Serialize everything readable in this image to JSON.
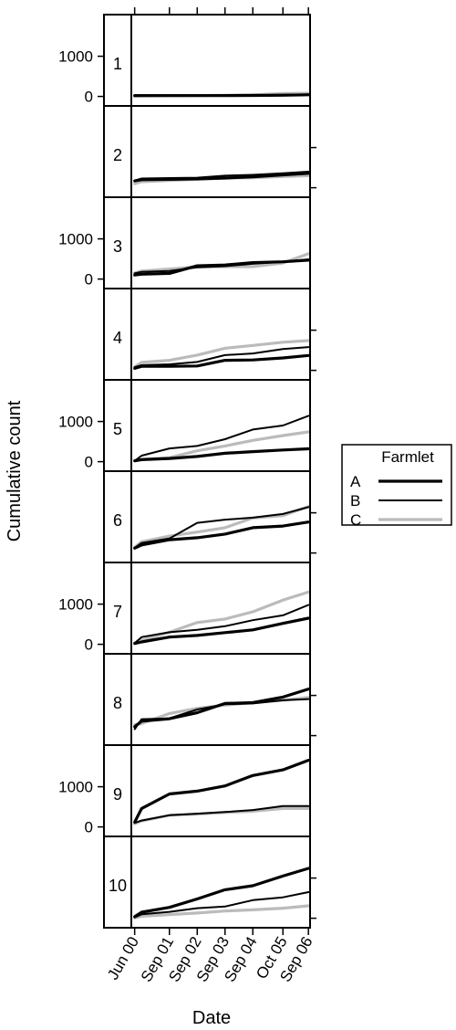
{
  "chart_data": {
    "type": "line",
    "ylabel": "Cumulative count",
    "xlabel": "Date",
    "x_tick_labels": [
      "Jun 00",
      "Sep 01",
      "Sep 02",
      "Sep 03",
      "Sep 04",
      "Oct 05",
      "Sep 06"
    ],
    "x_ticks": [
      "2000-06",
      "2001-09",
      "2002-09",
      "2003-09",
      "2004-09",
      "2005-10",
      "2006-09"
    ],
    "y_ticks": [
      0,
      1000
    ],
    "ylim": [
      -100,
      1900
    ],
    "legend": {
      "title": "Farmlet",
      "position": "right",
      "entries": [
        "A",
        "B",
        "C"
      ]
    },
    "series_styles": [
      {
        "key": "A",
        "color": "#000000",
        "width": 3.2
      },
      {
        "key": "B",
        "color": "#000000",
        "width": 2.0
      },
      {
        "key": "C",
        "color": "#bbbbbb",
        "width": 3.2
      }
    ],
    "x": [
      "2000-06",
      "2000-09",
      "2001-09",
      "2002-09",
      "2003-09",
      "2004-09",
      "2005-10",
      "2006-09"
    ],
    "panels": [
      {
        "label": "1",
        "series": [
          {
            "key": "A",
            "values": [
              20,
              20,
              20,
              20,
              20,
              25,
              30,
              40
            ]
          },
          {
            "key": "B",
            "values": [
              30,
              30,
              30,
              30,
              30,
              35,
              40,
              50
            ]
          },
          {
            "key": "C",
            "values": [
              5,
              10,
              15,
              20,
              30,
              40,
              70,
              80
            ]
          }
        ]
      },
      {
        "label": "2",
        "series": [
          {
            "key": "A",
            "values": [
              170,
              200,
              210,
              220,
              240,
              270,
              320,
              360
            ]
          },
          {
            "key": "B",
            "values": [
              180,
              230,
              240,
              250,
              300,
              320,
              360,
              400
            ]
          },
          {
            "key": "C",
            "values": [
              100,
              150,
              180,
              210,
              240,
              250,
              280,
              300
            ]
          }
        ]
      },
      {
        "label": "3",
        "series": [
          {
            "key": "A",
            "values": [
              100,
              120,
              140,
              330,
              350,
              410,
              430,
              470
            ]
          },
          {
            "key": "B",
            "values": [
              140,
              180,
              200,
              290,
              320,
              380,
              430,
              490
            ]
          },
          {
            "key": "C",
            "values": [
              150,
              200,
              250,
              300,
              310,
              310,
              400,
              630
            ]
          }
        ]
      },
      {
        "label": "4",
        "series": [
          {
            "key": "A",
            "values": [
              50,
              100,
              100,
              110,
              250,
              260,
              310,
              370
            ]
          },
          {
            "key": "B",
            "values": [
              80,
              130,
              150,
              210,
              380,
              420,
              530,
              580
            ]
          },
          {
            "key": "C",
            "values": [
              90,
              200,
              250,
              380,
              550,
              620,
              700,
              740
            ]
          }
        ]
      },
      {
        "label": "5",
        "series": [
          {
            "key": "A",
            "values": [
              20,
              50,
              80,
              130,
              210,
              250,
              290,
              320
            ]
          },
          {
            "key": "B",
            "values": [
              20,
              150,
              330,
              390,
              560,
              800,
              900,
              1140
            ]
          },
          {
            "key": "C",
            "values": [
              30,
              60,
              100,
              270,
              390,
              530,
              650,
              740
            ]
          }
        ]
      },
      {
        "label": "6",
        "series": [
          {
            "key": "A",
            "values": [
              120,
              200,
              330,
              380,
              470,
              630,
              670,
              770
            ]
          },
          {
            "key": "B",
            "values": [
              130,
              250,
              360,
              750,
              830,
              880,
              970,
              1140
            ]
          },
          {
            "key": "C",
            "values": [
              140,
              280,
              420,
              520,
              630,
              870,
              930,
              1160
            ]
          }
        ]
      },
      {
        "label": "7",
        "series": [
          {
            "key": "A",
            "values": [
              20,
              60,
              180,
              220,
              290,
              360,
              520,
              650
            ]
          },
          {
            "key": "B",
            "values": [
              30,
              180,
              300,
              360,
              450,
              600,
              720,
              980
            ]
          },
          {
            "key": "C",
            "values": [
              30,
              100,
              300,
              540,
              630,
              810,
              1100,
              1300
            ]
          }
        ]
      },
      {
        "label": "8",
        "series": [
          {
            "key": "A",
            "values": [
              220,
              360,
              420,
              570,
              800,
              820,
              960,
              1160
            ]
          },
          {
            "key": "B",
            "values": [
              160,
              410,
              430,
              650,
              780,
              800,
              880,
              910
            ]
          },
          {
            "key": "C",
            "values": [
              270,
              300,
              550,
              680,
              760,
              820,
              880,
              950
            ]
          }
        ]
      },
      {
        "label": "9",
        "series": [
          {
            "key": "A",
            "values": [
              120,
              460,
              820,
              890,
              1020,
              1280,
              1420,
              1660
            ]
          },
          {
            "key": "B",
            "values": [
              100,
              160,
              290,
              330,
              370,
              420,
              520,
              520
            ]
          },
          {
            "key": "C",
            "values": [
              80,
              150,
              290,
              320,
              360,
              390,
              460,
              460
            ]
          }
        ]
      },
      {
        "label": "10",
        "series": [
          {
            "key": "A",
            "values": [
              40,
              150,
              270,
              480,
              710,
              810,
              1050,
              1240
            ]
          },
          {
            "key": "B",
            "values": [
              20,
              100,
              160,
              250,
              290,
              450,
              520,
              650
            ]
          },
          {
            "key": "C",
            "values": [
              10,
              50,
              90,
              130,
              180,
              210,
              250,
              310
            ]
          }
        ]
      }
    ]
  }
}
